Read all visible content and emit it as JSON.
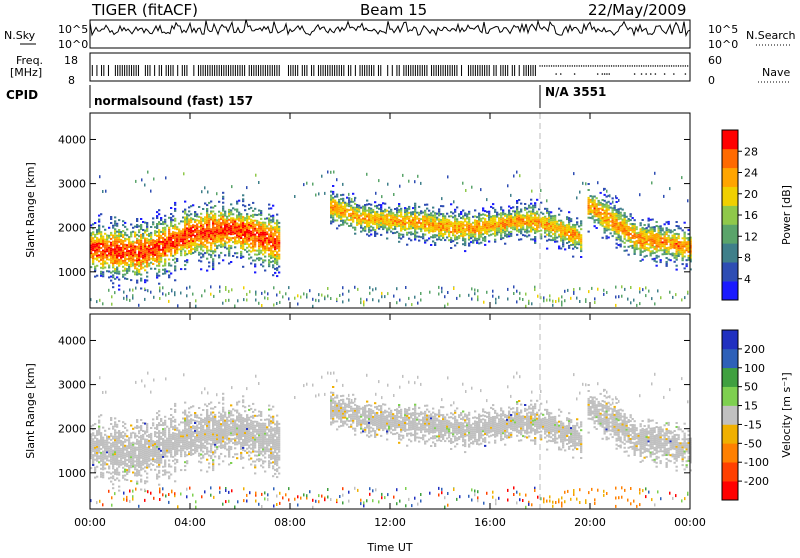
{
  "header": {
    "radar": "TIGER (fitACF)",
    "beam": "Beam 15",
    "date": "22/May/2009"
  },
  "top_panels": {
    "nsky_label": "N.Sky",
    "nsky_ticks": [
      "10^5",
      "10^0"
    ],
    "nsearch_label": "N.Search",
    "freq_label": "Freq.",
    "freq_unit": "[MHz]",
    "freq_ticks": [
      "18",
      "8"
    ],
    "nave_ticks": [
      "60",
      "0"
    ],
    "nave_label": "Nave",
    "cpid_label": "CPID",
    "cpid_segments": [
      {
        "name": "normalsound (fast) 157",
        "start_hour": 0
      },
      {
        "name": "N/A 3551",
        "start_hour": 18
      }
    ]
  },
  "chart_data": [
    {
      "type": "heatmap",
      "title": "",
      "xlabel": "Time UT",
      "ylabel": "Slant Range [km]",
      "xlim": [
        0,
        24
      ],
      "ylim": [
        180,
        4600
      ],
      "xticks": [
        "00:00",
        "04:00",
        "08:00",
        "12:00",
        "16:00",
        "20:00",
        "00:00"
      ],
      "yticks": [
        1000,
        2000,
        3000,
        4000
      ],
      "colorbar": {
        "label": "Power [dB]",
        "ticks": [
          4,
          8,
          12,
          16,
          20,
          24,
          28
        ],
        "range": [
          0,
          30
        ],
        "colors": [
          "#1a1aff",
          "#2e4db3",
          "#3f7f8a",
          "#5aa46a",
          "#8fc84a",
          "#f0d000",
          "#ffa500",
          "#ff6a00",
          "#ff0000"
        ]
      },
      "echo_bands": [
        {
          "start_hour": 0.0,
          "end_hour": 7.6,
          "center_km": [
            1500,
            1450,
            1400,
            1550,
            1800,
            1900,
            1950,
            1800,
            1600
          ],
          "width_km": 500,
          "peak_db": 27
        },
        {
          "start_hour": 9.6,
          "end_hour": 19.6,
          "center_km": [
            2450,
            2200,
            2150,
            2100,
            2000,
            1950,
            2050,
            2150,
            2000,
            1750
          ],
          "width_km": 300,
          "peak_db": 22
        },
        {
          "start_hour": 19.9,
          "end_hour": 24.0,
          "center_km": [
            2500,
            2100,
            1700,
            1650,
            1500
          ],
          "width_km": 350,
          "peak_db": 23
        }
      ]
    },
    {
      "type": "heatmap",
      "title": "",
      "xlabel": "Time UT",
      "ylabel": "Slant Range [km]",
      "xlim": [
        0,
        24
      ],
      "ylim": [
        180,
        4600
      ],
      "xticks": [
        "00:00",
        "04:00",
        "08:00",
        "12:00",
        "16:00",
        "20:00",
        "00:00"
      ],
      "yticks": [
        1000,
        2000,
        3000,
        4000
      ],
      "colorbar": {
        "label": "Velocity [m s⁻¹]",
        "ticks": [
          200,
          100,
          50,
          15,
          -15,
          -50,
          -100,
          -200
        ],
        "range": [
          -250,
          250
        ],
        "colors": [
          "#2030c0",
          "#2e60b8",
          "#40a040",
          "#7ed050",
          "#c0c0c0",
          "#f0b000",
          "#ff8000",
          "#ff4000",
          "#ff0000"
        ]
      },
      "dominant_velocity": "-15 to 15",
      "near_range_velocity": "-50 to -100"
    }
  ],
  "colors": {
    "axis": "#000000",
    "ground_scatter": "#c0c0c0",
    "cpid_marker": "#bbbbbb"
  }
}
